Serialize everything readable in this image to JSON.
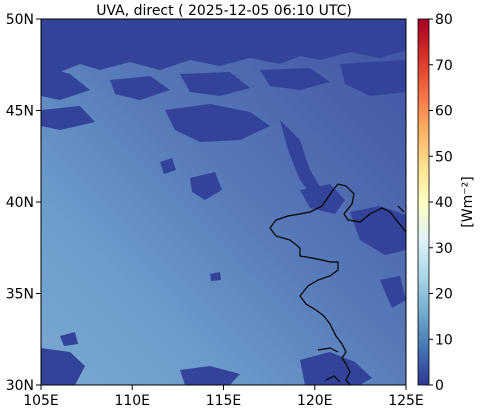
{
  "chart_data": {
    "type": "heatmap",
    "title": "UVA, direct ( 2025-12-05 06:10 UTC)",
    "xlabel": "",
    "ylabel": "",
    "x_ticks": [
      "105E",
      "110E",
      "115E",
      "120E",
      "125E"
    ],
    "y_ticks": [
      "30N",
      "35N",
      "40N",
      "45N",
      "50N"
    ],
    "xlim": [
      105,
      125
    ],
    "ylim": [
      30,
      50
    ],
    "colorbar": {
      "label": "[Wm⁻²]",
      "ticks": [
        "0",
        "10",
        "20",
        "30",
        "40",
        "50",
        "60",
        "70",
        "80"
      ],
      "range": [
        0,
        80
      ],
      "colormap": "RdYlBu_r"
    },
    "field_description_values": {
      "value_min_visible": 0,
      "value_max_visible": 14
    },
    "grid": false,
    "coastline": true
  },
  "colors": {
    "low": "#313695",
    "mid": "#74add1",
    "high": "#a50026"
  }
}
